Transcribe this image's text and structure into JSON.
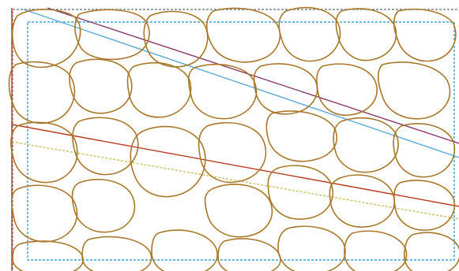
{
  "colors": {
    "background": "#ffffff",
    "cell_outline": "#a8782a",
    "outer_frame": "#7a8a8a",
    "inner_frame": "#3aa0d8",
    "left_edge": "#c0302a",
    "line_purple": "#8a3a6a",
    "line_cyan": "#58a8d8",
    "line_red": "#b83a22",
    "line_yellow": "#c8c060"
  }
}
